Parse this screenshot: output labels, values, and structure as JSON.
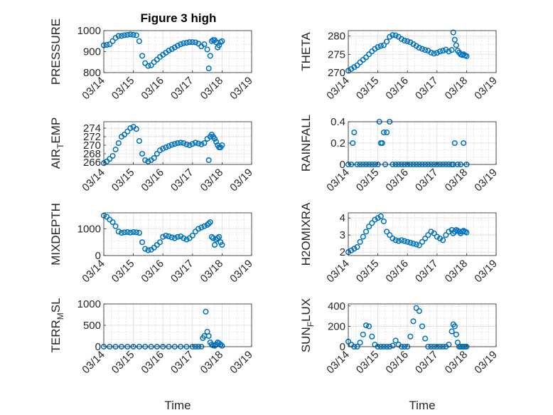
{
  "figure_title": "Figure 3 high",
  "colors": {
    "marker": "#0072bd",
    "axis": "#262626",
    "grid": "#d9d9d9",
    "background": "#ffffff"
  },
  "chart_data": [
    {
      "id": "pressure",
      "type": "scatter",
      "ylabel": "PRESSURE",
      "ylim": [
        800,
        1000
      ],
      "yticks": [
        800,
        900,
        1000
      ],
      "xlim": [
        0,
        5
      ],
      "xticks_labels": [
        "03/14",
        "03/15",
        "03/16",
        "03/17",
        "03/18",
        "03/19"
      ],
      "xlabel": "",
      "x": [
        0,
        0.1,
        0.2,
        0.3,
        0.4,
        0.5,
        0.6,
        0.7,
        0.8,
        0.9,
        1.0,
        1.1,
        1.2,
        1.3,
        1.4,
        1.5,
        1.6,
        1.7,
        1.8,
        1.9,
        2.0,
        2.1,
        2.2,
        2.3,
        2.4,
        2.5,
        2.6,
        2.7,
        2.8,
        2.9,
        3.0,
        3.1,
        3.2,
        3.3,
        3.4,
        3.5,
        3.55,
        3.6,
        3.65,
        3.7,
        3.75,
        3.8,
        3.85,
        3.9,
        3.95,
        4.0
      ],
      "y": [
        930,
        932,
        935,
        950,
        965,
        975,
        975,
        978,
        980,
        982,
        980,
        978,
        950,
        880,
        845,
        832,
        835,
        850,
        862,
        875,
        885,
        895,
        905,
        912,
        920,
        928,
        935,
        940,
        942,
        945,
        945,
        944,
        938,
        925,
        935,
        910,
        820,
        880,
        950,
        955,
        955,
        945,
        920,
        930,
        945,
        950
      ]
    },
    {
      "id": "theta",
      "type": "scatter",
      "ylabel": "THETA",
      "ylim": [
        270,
        281.5
      ],
      "yticks": [
        270,
        275,
        280
      ],
      "xlim": [
        0,
        5
      ],
      "xticks_labels": [
        "03/14",
        "03/15",
        "03/16",
        "03/17",
        "03/18",
        "03/19"
      ],
      "xlabel": "",
      "x": [
        0,
        0.1,
        0.2,
        0.3,
        0.4,
        0.5,
        0.6,
        0.7,
        0.8,
        0.9,
        1.0,
        1.1,
        1.2,
        1.3,
        1.4,
        1.5,
        1.6,
        1.7,
        1.8,
        1.9,
        2.0,
        2.1,
        2.2,
        2.3,
        2.4,
        2.5,
        2.6,
        2.7,
        2.8,
        2.9,
        3.0,
        3.1,
        3.2,
        3.3,
        3.4,
        3.5,
        3.55,
        3.6,
        3.65,
        3.7,
        3.75,
        3.8,
        3.85,
        3.9,
        3.95,
        4.0
      ],
      "y": [
        270.5,
        271,
        271.5,
        272,
        272.8,
        273.5,
        274.2,
        275,
        275.8,
        276.5,
        277,
        277.3,
        277.5,
        278.5,
        279.8,
        280.3,
        280.2,
        279.8,
        279.2,
        278.8,
        278.6,
        278.3,
        277.8,
        277.3,
        276.8,
        276.5,
        276.2,
        276,
        275.5,
        275.2,
        275.4,
        275.8,
        276,
        276.3,
        275.8,
        276.2,
        281,
        279,
        277.5,
        276,
        275.5,
        275,
        274.8,
        275,
        274.7,
        274.5
      ]
    },
    {
      "id": "air_temp",
      "type": "scatter",
      "ylabel": "AIR_TEMP",
      "ylim": [
        265.5,
        275.5
      ],
      "yticks": [
        266,
        268,
        270,
        272,
        274
      ],
      "xlim": [
        0,
        5
      ],
      "xticks_labels": [
        "03/14",
        "03/15",
        "03/16",
        "03/17",
        "03/18",
        "03/19"
      ],
      "xlabel": "",
      "x": [
        0,
        0.1,
        0.2,
        0.3,
        0.4,
        0.5,
        0.6,
        0.7,
        0.8,
        0.9,
        1.0,
        1.1,
        1.2,
        1.3,
        1.4,
        1.5,
        1.6,
        1.7,
        1.8,
        1.9,
        2.0,
        2.1,
        2.2,
        2.3,
        2.4,
        2.5,
        2.6,
        2.7,
        2.8,
        2.9,
        3.0,
        3.1,
        3.2,
        3.3,
        3.4,
        3.5,
        3.55,
        3.6,
        3.65,
        3.7,
        3.75,
        3.8,
        3.85,
        3.9,
        3.95,
        4.0
      ],
      "y": [
        265.8,
        266.2,
        266.8,
        267.5,
        269,
        270.5,
        272,
        272.5,
        273.2,
        274,
        274.3,
        273.8,
        271,
        268,
        266.5,
        266.2,
        266.5,
        267,
        268,
        268.8,
        269.2,
        269.5,
        269.8,
        270.1,
        270.3,
        270.5,
        270.6,
        270.5,
        270.2,
        270,
        270.3,
        270.6,
        270.4,
        270.2,
        270.5,
        271.5,
        266.5,
        272,
        272.5,
        272,
        271.5,
        270.8,
        270,
        269.5,
        269.5,
        270
      ]
    },
    {
      "id": "rainfall",
      "type": "scatter",
      "ylabel": "RAINFALL",
      "ylim": [
        0,
        0.4
      ],
      "yticks": [
        0,
        0.2,
        0.4
      ],
      "xlim": [
        0,
        5
      ],
      "xticks_labels": [
        "03/14",
        "03/15",
        "03/16",
        "03/17",
        "03/18",
        "03/19"
      ],
      "xlabel": "",
      "x": [
        0,
        0.1,
        0.15,
        0.2,
        0.3,
        0.4,
        0.5,
        0.6,
        0.7,
        0.8,
        0.9,
        1.0,
        1.05,
        1.1,
        1.15,
        1.2,
        1.25,
        1.3,
        1.4,
        1.5,
        1.6,
        1.7,
        1.8,
        1.9,
        2.0,
        2.1,
        2.2,
        2.3,
        2.4,
        2.5,
        2.6,
        2.7,
        2.8,
        2.9,
        3.0,
        3.1,
        3.2,
        3.3,
        3.4,
        3.5,
        3.55,
        3.6,
        3.7,
        3.8,
        3.9,
        4.0
      ],
      "y": [
        0,
        0,
        0.2,
        0.3,
        0,
        0,
        0,
        0,
        0,
        0,
        0,
        0,
        0.4,
        0.2,
        0.2,
        0.3,
        0,
        0.3,
        0.4,
        0,
        0,
        0,
        0,
        0,
        0,
        0,
        0,
        0,
        0,
        0,
        0,
        0,
        0,
        0,
        0,
        0,
        0,
        0,
        0,
        0,
        0,
        0.2,
        0,
        0,
        0.2,
        0
      ]
    },
    {
      "id": "mixdepth",
      "type": "scatter",
      "ylabel": "MIXDEPTH",
      "ylim": [
        0,
        1600
      ],
      "yticks": [
        0,
        1000
      ],
      "xlim": [
        0,
        5
      ],
      "xticks_labels": [
        "03/14",
        "03/15",
        "03/16",
        "03/17",
        "03/18",
        "03/19"
      ],
      "xlabel": "",
      "x": [
        0,
        0.1,
        0.2,
        0.3,
        0.4,
        0.5,
        0.6,
        0.7,
        0.8,
        0.9,
        1.0,
        1.1,
        1.2,
        1.3,
        1.4,
        1.5,
        1.6,
        1.7,
        1.8,
        1.9,
        2.0,
        2.1,
        2.2,
        2.3,
        2.4,
        2.5,
        2.6,
        2.7,
        2.8,
        2.9,
        3.0,
        3.1,
        3.2,
        3.3,
        3.4,
        3.5,
        3.55,
        3.6,
        3.65,
        3.7,
        3.75,
        3.8,
        3.85,
        3.9,
        3.95,
        4.0
      ],
      "y": [
        1500,
        1450,
        1350,
        1250,
        1100,
        900,
        850,
        870,
        880,
        860,
        880,
        870,
        850,
        500,
        250,
        200,
        220,
        300,
        400,
        500,
        700,
        750,
        720,
        680,
        650,
        700,
        720,
        650,
        600,
        650,
        750,
        900,
        1000,
        1050,
        1100,
        1150,
        1200,
        1250,
        700,
        650,
        400,
        600,
        650,
        700,
        500,
        400
      ]
    },
    {
      "id": "h2omixra",
      "type": "scatter",
      "ylabel": "H2OMIXRA",
      "ylim": [
        1.8,
        4.3
      ],
      "yticks": [
        2,
        3,
        4
      ],
      "xlim": [
        0,
        5
      ],
      "xticks_labels": [
        "03/14",
        "03/15",
        "03/16",
        "03/17",
        "03/18",
        "03/19"
      ],
      "xlabel": "",
      "x": [
        0,
        0.1,
        0.2,
        0.3,
        0.4,
        0.5,
        0.6,
        0.7,
        0.8,
        0.9,
        1.0,
        1.1,
        1.2,
        1.3,
        1.4,
        1.5,
        1.6,
        1.7,
        1.8,
        1.9,
        2.0,
        2.1,
        2.2,
        2.3,
        2.4,
        2.5,
        2.6,
        2.7,
        2.8,
        2.9,
        3.0,
        3.1,
        3.2,
        3.3,
        3.4,
        3.5,
        3.55,
        3.6,
        3.65,
        3.7,
        3.75,
        3.8,
        3.85,
        3.9,
        3.95,
        4.0
      ],
      "y": [
        2.0,
        2.1,
        2.2,
        2.3,
        2.6,
        2.9,
        3.2,
        3.5,
        3.7,
        3.9,
        4.0,
        4.1,
        3.8,
        3.2,
        3.0,
        2.8,
        2.7,
        2.65,
        2.7,
        2.65,
        2.6,
        2.55,
        2.5,
        2.45,
        2.4,
        2.6,
        2.8,
        3.0,
        3.2,
        3.1,
        2.9,
        2.8,
        2.7,
        3.0,
        3.2,
        3.3,
        3.1,
        3.2,
        3.3,
        3.25,
        3.2,
        3.1,
        3.2,
        3.25,
        3.2,
        3.15
      ]
    },
    {
      "id": "terr_msl",
      "type": "scatter",
      "ylabel": "TERR_MSL",
      "ylim": [
        0,
        1000
      ],
      "yticks": [
        0,
        500,
        1000
      ],
      "xlim": [
        0,
        5
      ],
      "xticks_labels": [
        "03/14",
        "03/15",
        "03/16",
        "03/17",
        "03/18",
        "03/19"
      ],
      "xlabel": "Time",
      "x": [
        0,
        0.2,
        0.4,
        0.6,
        0.8,
        1.0,
        1.2,
        1.4,
        1.6,
        1.8,
        2.0,
        2.2,
        2.4,
        2.6,
        2.8,
        3.0,
        3.1,
        3.2,
        3.3,
        3.35,
        3.4,
        3.45,
        3.5,
        3.55,
        3.6,
        3.65,
        3.7,
        3.75,
        3.8,
        3.85,
        3.9,
        3.95,
        4.0
      ],
      "y": [
        0,
        0,
        0,
        0,
        0,
        0,
        0,
        0,
        0,
        0,
        0,
        0,
        0,
        0,
        0,
        0,
        0,
        0,
        0,
        200,
        250,
        820,
        350,
        250,
        100,
        50,
        30,
        20,
        50,
        100,
        80,
        50,
        20
      ]
    },
    {
      "id": "sun_flux",
      "type": "scatter",
      "ylabel": "SUN_FLUX",
      "ylim": [
        0,
        420
      ],
      "yticks": [
        0,
        200,
        400
      ],
      "xlim": [
        0,
        5
      ],
      "xticks_labels": [
        "03/14",
        "03/15",
        "03/16",
        "03/17",
        "03/18",
        "03/19"
      ],
      "xlabel": "Time",
      "x": [
        0,
        0.1,
        0.2,
        0.3,
        0.4,
        0.5,
        0.6,
        0.7,
        0.8,
        0.9,
        1.0,
        1.1,
        1.2,
        1.3,
        1.4,
        1.5,
        1.6,
        1.7,
        1.8,
        1.9,
        2.0,
        2.1,
        2.2,
        2.3,
        2.4,
        2.5,
        2.6,
        2.7,
        2.8,
        2.9,
        3.0,
        3.1,
        3.2,
        3.3,
        3.4,
        3.5,
        3.55,
        3.6,
        3.65,
        3.7,
        3.75,
        3.8,
        3.85,
        3.9,
        3.95,
        4.0
      ],
      "y": [
        50,
        20,
        0,
        0,
        40,
        120,
        210,
        200,
        100,
        20,
        0,
        0,
        0,
        0,
        0,
        10,
        60,
        20,
        0,
        0,
        0,
        100,
        250,
        380,
        350,
        200,
        80,
        0,
        0,
        0,
        0,
        0,
        0,
        0,
        20,
        150,
        220,
        200,
        120,
        40,
        0,
        0,
        0,
        0,
        0,
        0
      ]
    }
  ]
}
